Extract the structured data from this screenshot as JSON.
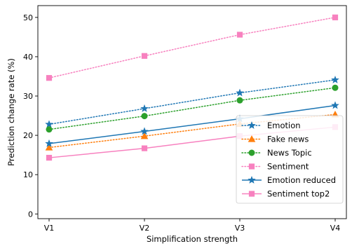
{
  "chart_data": {
    "type": "line",
    "xlabel": "Simplification strength",
    "ylabel": "Prediction change rate (%)",
    "categories": [
      "V1",
      "V2",
      "V3",
      "V4"
    ],
    "ylim": [
      -1.2,
      53
    ],
    "yticks": [
      0,
      10,
      20,
      30,
      40,
      50
    ],
    "grid": false,
    "legend_position": "lower-right",
    "series": [
      {
        "name": "Emotion",
        "values": [
          22.8,
          26.8,
          30.8,
          34.1
        ],
        "color": "#1f77b4",
        "linestyle": "dotted",
        "marker": "star"
      },
      {
        "name": "Fake news",
        "values": [
          16.9,
          19.8,
          22.9,
          25.3
        ],
        "color": "#ff7f0e",
        "linestyle": "dotted",
        "marker": "triangle"
      },
      {
        "name": "News Topic",
        "values": [
          21.5,
          24.9,
          28.9,
          32.1
        ],
        "color": "#2ca02c",
        "linestyle": "dotted",
        "marker": "circle"
      },
      {
        "name": "Sentiment",
        "values": [
          34.6,
          40.2,
          45.6,
          50.0
        ],
        "color": "#f781bf",
        "linestyle": "dotted",
        "marker": "square"
      },
      {
        "name": "Emotion reduced",
        "values": [
          17.9,
          21.0,
          24.2,
          27.6
        ],
        "color": "#1f77b4",
        "linestyle": "solid",
        "marker": "star"
      },
      {
        "name": "Sentiment top2",
        "values": [
          14.3,
          16.7,
          19.8,
          22.1
        ],
        "color": "#f781bf",
        "linestyle": "solid",
        "marker": "square"
      }
    ]
  }
}
